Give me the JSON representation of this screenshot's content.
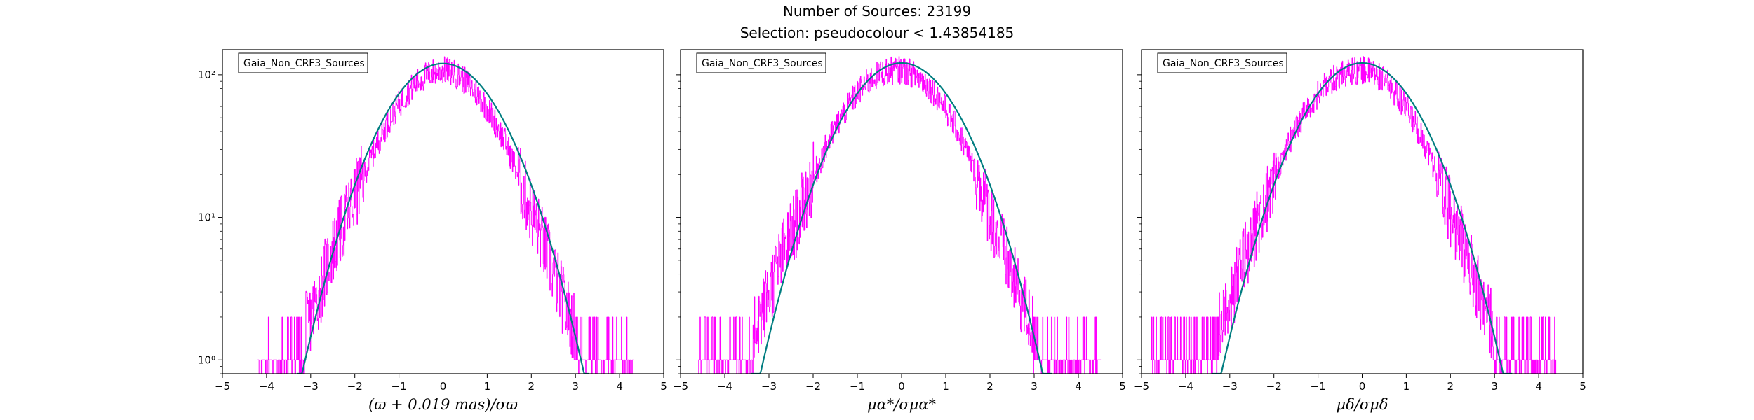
{
  "figure": {
    "title": "Number of Sources: 23199",
    "subtitle": "Selection: pseudocolour < 1.43854185"
  },
  "colors": {
    "histogram": "#ff00ff",
    "gaussian_fit": "#007d80",
    "axes": "#000000",
    "background": "#ffffff"
  },
  "chart_data": [
    {
      "type": "line",
      "legend": "Gaia_Non_CRF3_Sources",
      "legend_position": "top-left",
      "xlabel": "(ϖ + 0.019 mas)/σϖ",
      "ylabel": "",
      "yscale": "log",
      "xlim": [
        -5,
        5
      ],
      "ylim": [
        0.8,
        150
      ],
      "xticks": [
        "−5",
        "−4",
        "−3",
        "−2",
        "−1",
        "0",
        "1",
        "2",
        "3",
        "4",
        "5"
      ],
      "yticks": [
        "10⁰",
        "10¹",
        "10²"
      ],
      "show_yticks": true,
      "grid": false,
      "series": [
        {
          "kind": "gaussian_fit",
          "x": [
            -3.3,
            -3.0,
            -2.5,
            -2.0,
            -1.5,
            -1.0,
            -0.5,
            0.0,
            0.5,
            1.0,
            1.5,
            2.0,
            2.5,
            3.0,
            3.3
          ],
          "y": [
            0.56,
            1.38,
            5.3,
            16.2,
            39.5,
            73.5,
            106.5,
            120,
            106.5,
            73.5,
            39.5,
            16.2,
            5.3,
            1.38,
            0.56
          ]
        },
        {
          "kind": "histogram",
          "x": [
            -4.2,
            -3.9,
            -3.5,
            -3.2,
            -3.0,
            -2.8,
            -2.6,
            -2.4,
            -2.2,
            -2.0,
            -1.8,
            -1.6,
            -1.4,
            -1.2,
            -1.0,
            -0.8,
            -0.6,
            -0.4,
            -0.2,
            0.0,
            0.2,
            0.4,
            0.6,
            0.8,
            1.0,
            1.2,
            1.4,
            1.6,
            1.8,
            2.0,
            2.2,
            2.4,
            2.6,
            2.8,
            3.0,
            3.2,
            3.5,
            3.9,
            4.3
          ],
          "y": [
            1,
            1,
            1,
            1.5,
            2,
            3,
            5,
            7,
            10,
            14,
            20,
            28,
            38,
            50,
            62,
            76,
            88,
            98,
            105,
            108,
            104,
            96,
            84,
            72,
            58,
            45,
            34,
            24,
            16,
            11,
            7.5,
            5,
            3.3,
            2.2,
            1.6,
            1.2,
            1,
            1,
            1
          ]
        }
      ]
    },
    {
      "type": "line",
      "legend": "Gaia_Non_CRF3_Sources",
      "legend_position": "top-left",
      "xlabel": "μα*/σμα*",
      "ylabel": "",
      "yscale": "log",
      "xlim": [
        -5,
        5
      ],
      "ylim": [
        0.8,
        150
      ],
      "xticks": [
        "−5",
        "−4",
        "−3",
        "−2",
        "−1",
        "0",
        "1",
        "2",
        "3",
        "4",
        "5"
      ],
      "yticks": [],
      "show_yticks": false,
      "grid": false,
      "series": [
        {
          "kind": "gaussian_fit",
          "x": [
            -3.4,
            -3.0,
            -2.5,
            -2.0,
            -1.5,
            -1.0,
            -0.5,
            0.0,
            0.5,
            1.0,
            1.5,
            2.0,
            2.5,
            3.0,
            3.4
          ],
          "y": [
            0.6,
            1.45,
            5.5,
            16.5,
            40,
            74,
            107,
            121,
            107,
            74,
            40,
            16.5,
            5.5,
            1.45,
            0.6
          ]
        },
        {
          "kind": "histogram",
          "x": [
            -4.6,
            -4.2,
            -3.8,
            -3.5,
            -3.2,
            -3.0,
            -2.8,
            -2.6,
            -2.4,
            -2.2,
            -2.0,
            -1.8,
            -1.6,
            -1.4,
            -1.2,
            -1.0,
            -0.8,
            -0.6,
            -0.4,
            -0.2,
            0.0,
            0.2,
            0.4,
            0.6,
            0.8,
            1.0,
            1.2,
            1.4,
            1.6,
            1.8,
            2.0,
            2.2,
            2.4,
            2.6,
            2.8,
            3.0,
            3.2,
            3.6,
            4.0,
            4.5
          ],
          "y": [
            1,
            1,
            1,
            1.5,
            2,
            3,
            4.5,
            6.5,
            9,
            13,
            19,
            27,
            37,
            49,
            61,
            75,
            87,
            97,
            104,
            107,
            108,
            103,
            95,
            84,
            71,
            57,
            44,
            33,
            23,
            16,
            10.5,
            7,
            4.8,
            3.2,
            2.2,
            1.6,
            1.2,
            1,
            1,
            1
          ]
        }
      ]
    },
    {
      "type": "line",
      "legend": "Gaia_Non_CRF3_Sources",
      "legend_position": "top-left",
      "xlabel": "μδ/σμδ",
      "ylabel": "",
      "yscale": "log",
      "xlim": [
        -5,
        5
      ],
      "ylim": [
        0.8,
        150
      ],
      "xticks": [
        "−5",
        "−4",
        "−3",
        "−2",
        "−1",
        "0",
        "1",
        "2",
        "3",
        "4",
        "5"
      ],
      "yticks": [],
      "show_yticks": false,
      "grid": false,
      "series": [
        {
          "kind": "gaussian_fit",
          "x": [
            -3.4,
            -3.0,
            -2.5,
            -2.0,
            -1.5,
            -1.0,
            -0.5,
            0.0,
            0.5,
            1.0,
            1.5,
            2.0,
            2.5,
            3.0,
            3.4
          ],
          "y": [
            0.6,
            1.45,
            5.5,
            16.5,
            40,
            74,
            107,
            121,
            107,
            74,
            40,
            16.5,
            5.5,
            1.45,
            0.6
          ]
        },
        {
          "kind": "histogram",
          "x": [
            -4.8,
            -4.4,
            -4.0,
            -3.6,
            -3.3,
            -3.0,
            -2.8,
            -2.6,
            -2.4,
            -2.2,
            -2.0,
            -1.8,
            -1.6,
            -1.4,
            -1.2,
            -1.0,
            -0.8,
            -0.6,
            -0.4,
            -0.2,
            0.0,
            0.2,
            0.4,
            0.6,
            0.8,
            1.0,
            1.2,
            1.4,
            1.6,
            1.8,
            2.0,
            2.2,
            2.4,
            2.6,
            2.8,
            3.0,
            3.2,
            3.5,
            3.8,
            4.4
          ],
          "y": [
            1,
            1,
            1,
            1,
            1.6,
            2.5,
            4,
            6,
            8.5,
            12.5,
            18,
            26,
            36,
            48,
            60,
            74,
            86,
            96,
            103,
            107,
            108,
            104,
            96,
            85,
            72,
            58,
            45,
            34,
            24,
            16,
            11,
            7.5,
            5,
            3.3,
            2.2,
            1.6,
            1.2,
            1,
            1,
            1
          ]
        }
      ]
    }
  ]
}
